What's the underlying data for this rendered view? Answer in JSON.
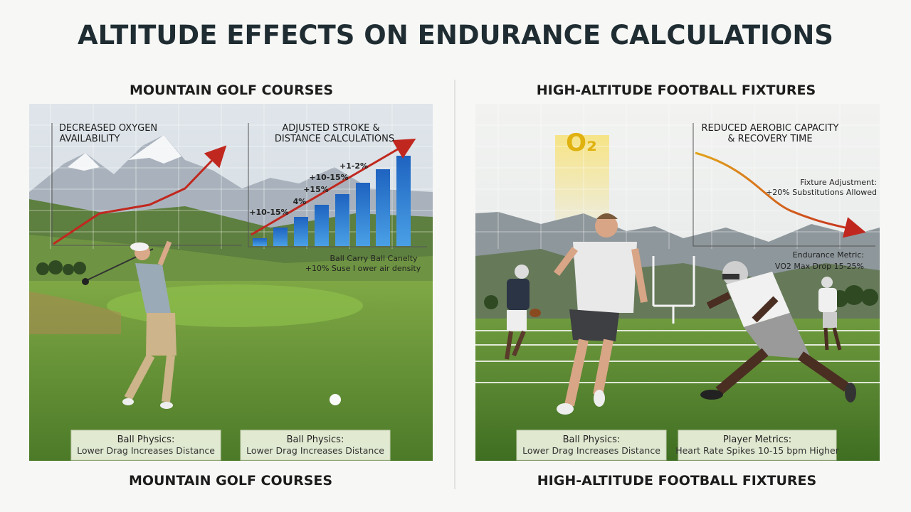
{
  "header": {
    "title": "ALTITUDE EFFECTS ON ENDURANCE CALCULATIONS"
  },
  "panels": [
    {
      "heading": "MOUNTAIN GOLF COURSES",
      "footer": "MOUNTAIN GOLF COURSES",
      "chart_left_label": [
        "DECREASED OXYGEN",
        "AVAILABILITY"
      ],
      "chart_right_label": [
        "ADJUSTED STROKE &",
        "DISTANCE CALCULATIONS"
      ],
      "bar_labels": [
        "+1-2%",
        "+10-15%",
        "+15%",
        "4%",
        "+10-15%"
      ],
      "note": [
        "Ball Carry Ball Canelty",
        "+10% Suse I ower air density"
      ],
      "cards": [
        {
          "title": "Ball Physics:",
          "text": "Lower Drag Increases Distance"
        },
        {
          "title": "Ball Physics:",
          "text": "Lower Drag Increases Distance"
        }
      ]
    },
    {
      "heading": "HIGH-ALTITUDE FOOTBALL FIXTURES",
      "footer": "HIGH-ALTITUDE FOOTBALL FIXTURES",
      "symbol": "O₂",
      "chart_label": [
        "REDUCED AEROBIC CAPACITY",
        "& RECOVERY TIME"
      ],
      "adjustment": [
        "Fixture Adjustment:",
        "+20% Substitutions Allowed"
      ],
      "metric": [
        "Endurance Metric:",
        "VO2 Max Drop 15-25%"
      ],
      "cards": [
        {
          "title": "Ball Physics:",
          "text": "Lower Drag Increases Distance"
        },
        {
          "title": "Player Metrics:",
          "text": "Heart Rate Spikes 10-15 bpm Higher"
        }
      ]
    }
  ]
}
